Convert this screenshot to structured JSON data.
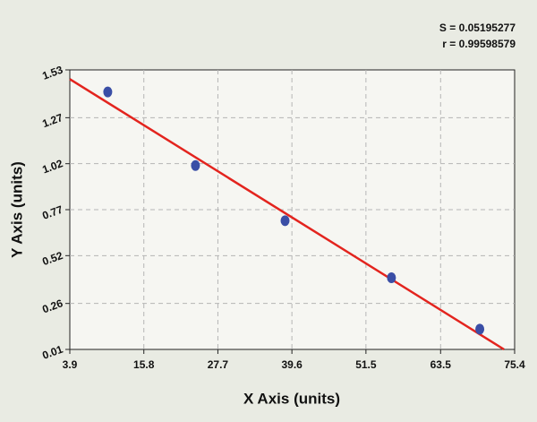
{
  "chart_data": {
    "type": "scatter",
    "x_label": "X Axis (units)",
    "y_label": "Y Axis (units)",
    "annotations": [
      "S = 0.05195277",
      "r = 0.99598579"
    ],
    "x": [
      10.0,
      24.1,
      38.5,
      55.6,
      69.8
    ],
    "values": [
      1.41,
      1.01,
      0.71,
      0.4,
      0.12
    ],
    "color": "#3a4ea6",
    "fit_line": {
      "x": [
        3.9,
        73.7
      ],
      "y": [
        1.48,
        0.01
      ],
      "color": "#e3241e"
    },
    "xlim": [
      3.9,
      75.4
    ],
    "xticks": [
      3.9,
      15.8,
      27.7,
      39.6,
      51.5,
      63.5,
      75.4
    ],
    "ylim": [
      0.01,
      1.53
    ],
    "yticks": [
      0.01,
      0.26,
      0.52,
      0.77,
      1.02,
      1.27,
      1.53
    ],
    "grid": true
  }
}
